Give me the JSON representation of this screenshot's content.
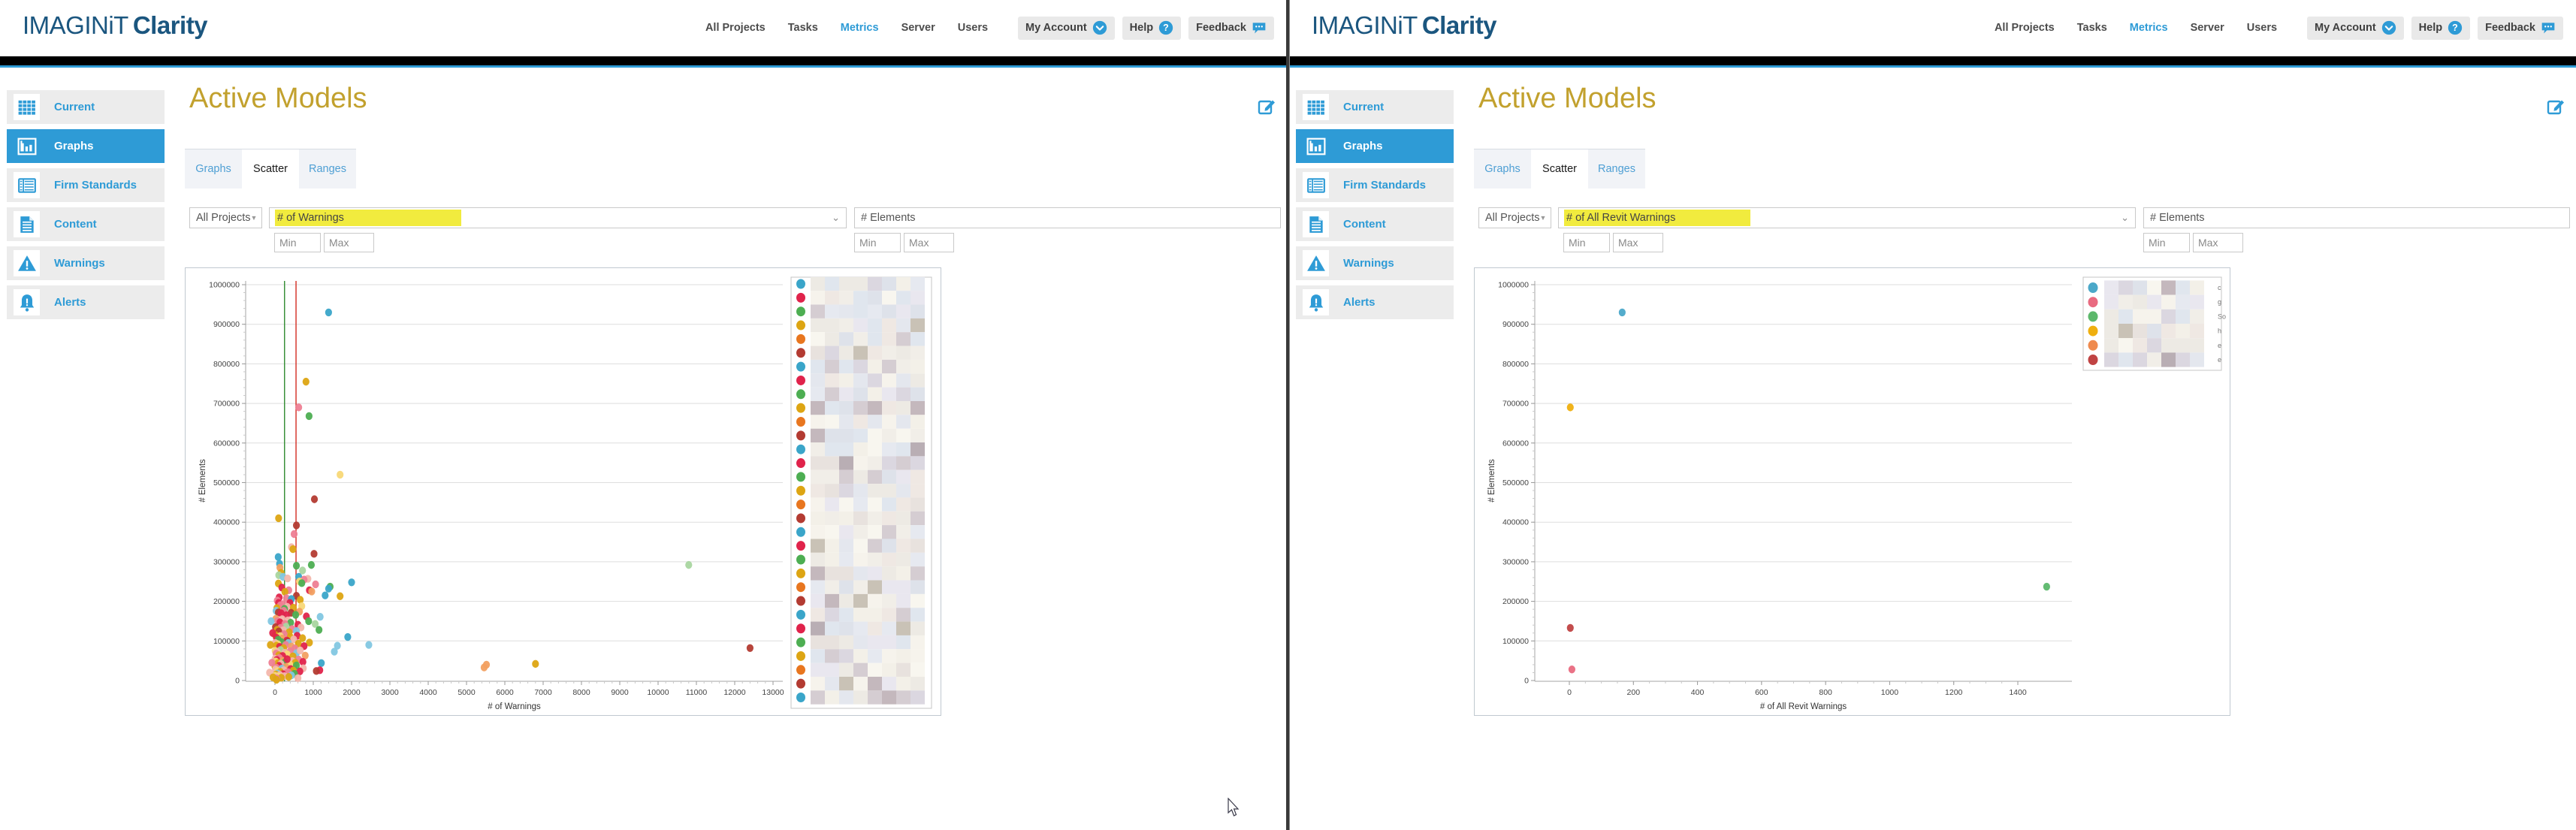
{
  "brand": {
    "regular": "IMAGINiT",
    "bold": "Clarity"
  },
  "nav": {
    "links": [
      "All Projects",
      "Tasks",
      "Metrics",
      "Server",
      "Users"
    ],
    "active": "Metrics",
    "buttons": [
      {
        "label": "My Account",
        "icon": "chevron-down-circle"
      },
      {
        "label": "Help",
        "icon": "question-circle"
      },
      {
        "label": "Feedback",
        "icon": "speech-bubble"
      }
    ]
  },
  "sidebar": [
    {
      "label": "Current",
      "icon": "table"
    },
    {
      "label": "Graphs",
      "icon": "bar-chart",
      "active": true
    },
    {
      "label": "Firm Standards",
      "icon": "standards"
    },
    {
      "label": "Content",
      "icon": "document"
    },
    {
      "label": "Warnings",
      "icon": "warning-triangle"
    },
    {
      "label": "Alerts",
      "icon": "alert-bell"
    }
  ],
  "page": {
    "title": "Active Models",
    "tabs": [
      {
        "label": "Graphs",
        "active": false
      },
      {
        "label": "Scatter",
        "active": true
      },
      {
        "label": "Ranges",
        "active": false
      }
    ]
  },
  "colors": {
    "accent_blue": "#2E9BD6",
    "title_gold": "#C2A12E",
    "highlight_yellow": "#F1EB3E",
    "logo_navy": "#1b567f"
  },
  "panels": [
    {
      "filters": {
        "project": "All Projects",
        "metric_x": "# of Warnings",
        "metric_y": "# Elements",
        "min": "Min",
        "max": "Max"
      },
      "chart_index": 0
    },
    {
      "filters": {
        "project": "All Projects",
        "metric_x": "# of All Revit Warnings",
        "metric_y": "# Elements",
        "min": "Min",
        "max": "Max"
      },
      "chart_index": 1
    }
  ],
  "chart_data": [
    {
      "type": "scatter",
      "title": "",
      "xlabel": "# of Warnings",
      "ylabel": "# Elements",
      "xlim": [
        0,
        13000
      ],
      "ylim": [
        0,
        1000000
      ],
      "xticks": [
        0,
        1000,
        2000,
        3000,
        4000,
        5000,
        6000,
        7000,
        8000,
        9000,
        10000,
        11000,
        12000,
        13000
      ],
      "yticks": [
        0,
        100000,
        200000,
        300000,
        400000,
        500000,
        600000,
        700000,
        800000,
        900000,
        1000000
      ],
      "x_minor_step": 200,
      "y_minor_step": 20000,
      "grid": "horizontal",
      "legend_position": "right",
      "palette": [
        "#3AA5C9",
        "#E0234B",
        "#4DAE52",
        "#DDA513",
        "#E8761F",
        "#B33B32",
        "#EE7F93",
        "#F3B7AC",
        "#82C7E2",
        "#A9D6A0",
        "#F8D877",
        "#F2A061"
      ],
      "reference_lines": [
        {
          "x": 250,
          "color": "#2E8B2E"
        },
        {
          "x": 550,
          "color": "#D42B20"
        }
      ],
      "legend": {
        "redacted": true,
        "entry_colors": [
          0,
          1,
          2,
          3,
          4,
          5,
          0,
          1,
          2,
          3,
          4,
          5,
          0,
          1,
          2,
          3,
          4,
          5,
          0,
          1,
          2,
          3,
          4,
          5,
          0,
          1,
          2,
          3,
          4,
          5,
          0
        ]
      },
      "points": [
        [
          1400,
          930000,
          0
        ],
        [
          810,
          755000,
          3
        ],
        [
          620,
          690000,
          6
        ],
        [
          890,
          668000,
          2
        ],
        [
          1700,
          520000,
          10
        ],
        [
          1030,
          458000,
          5
        ],
        [
          95,
          410000,
          3
        ],
        [
          560,
          392000,
          5
        ],
        [
          500,
          370000,
          6
        ],
        [
          430,
          337000,
          7
        ],
        [
          470,
          332000,
          3
        ],
        [
          1020,
          320000,
          5
        ],
        [
          85,
          312000,
          0
        ],
        [
          120,
          295000,
          0
        ],
        [
          10800,
          292000,
          9
        ],
        [
          950,
          292000,
          2
        ],
        [
          560,
          290000,
          2
        ],
        [
          130,
          285000,
          11
        ],
        [
          720,
          278000,
          9
        ],
        [
          160,
          272000,
          3
        ],
        [
          100,
          266000,
          9
        ],
        [
          620,
          262000,
          0
        ],
        [
          210,
          262000,
          8
        ],
        [
          330,
          258000,
          7
        ],
        [
          860,
          257000,
          7
        ],
        [
          760,
          255000,
          6
        ],
        [
          640,
          250000,
          10
        ],
        [
          2000,
          248000,
          0
        ],
        [
          700,
          246000,
          2
        ],
        [
          90,
          245000,
          3
        ],
        [
          1060,
          243000,
          6
        ],
        [
          1440,
          237000,
          2
        ],
        [
          180,
          235000,
          1
        ],
        [
          1400,
          232000,
          0
        ],
        [
          900,
          228000,
          1
        ],
        [
          360,
          228000,
          6
        ],
        [
          960,
          225000,
          11
        ],
        [
          260,
          224000,
          3
        ],
        [
          1700,
          213000,
          3
        ],
        [
          1310,
          215000,
          0
        ],
        [
          560,
          214000,
          5
        ],
        [
          110,
          210000,
          1
        ],
        [
          300,
          208000,
          6
        ],
        [
          430,
          206000,
          0
        ],
        [
          660,
          204000,
          3
        ],
        [
          60,
          202000,
          6
        ],
        [
          95,
          196000,
          1
        ],
        [
          390,
          196000,
          1
        ],
        [
          210,
          193000,
          6
        ],
        [
          140,
          190000,
          6
        ],
        [
          700,
          188000,
          10
        ],
        [
          320,
          186000,
          7
        ],
        [
          480,
          184000,
          3
        ],
        [
          50,
          183000,
          3
        ],
        [
          250,
          181000,
          2
        ],
        [
          30,
          176000,
          8
        ],
        [
          230,
          176000,
          6
        ],
        [
          640,
          174000,
          11
        ],
        [
          90,
          172000,
          5
        ],
        [
          420,
          171000,
          5
        ],
        [
          160,
          170000,
          1
        ],
        [
          540,
          166000,
          2
        ],
        [
          300,
          165000,
          1
        ],
        [
          820,
          162000,
          1
        ],
        [
          1180,
          161000,
          8
        ],
        [
          25,
          156000,
          11
        ],
        [
          190,
          155000,
          7
        ],
        [
          340,
          152000,
          7
        ],
        [
          70,
          150000,
          6
        ],
        [
          880,
          150000,
          2
        ],
        [
          130,
          147000,
          1
        ],
        [
          410,
          146000,
          2
        ],
        [
          260,
          143000,
          6
        ],
        [
          1050,
          143000,
          9
        ],
        [
          600,
          141000,
          1
        ],
        [
          15,
          135000,
          5
        ],
        [
          290,
          136000,
          9
        ],
        [
          680,
          134000,
          7
        ],
        [
          150,
          133000,
          6
        ],
        [
          450,
          130000,
          6
        ],
        [
          55,
          128000,
          3
        ],
        [
          220,
          127000,
          7
        ],
        [
          1150,
          128000,
          2
        ],
        [
          560,
          125000,
          8
        ],
        [
          100,
          124000,
          5
        ],
        [
          370,
          122000,
          3
        ],
        [
          240,
          117000,
          6
        ],
        [
          10,
          115000,
          3
        ],
        [
          580,
          113000,
          1
        ],
        [
          135,
          112000,
          10
        ],
        [
          400,
          110000,
          3
        ],
        [
          1900,
          110000,
          0
        ],
        [
          40,
          108000,
          1
        ],
        [
          720,
          107000,
          3
        ],
        [
          185,
          106000,
          11
        ],
        [
          490,
          104000,
          7
        ],
        [
          85,
          103000,
          2
        ],
        [
          310,
          101000,
          1
        ],
        [
          330,
          98000,
          5
        ],
        [
          170,
          97000,
          2
        ],
        [
          900,
          96000,
          3
        ],
        [
          8,
          95000,
          7
        ],
        [
          350,
          95000,
          8
        ],
        [
          610,
          93000,
          3
        ],
        [
          75,
          92000,
          10
        ],
        [
          280,
          90000,
          6
        ],
        [
          2450,
          90000,
          8
        ],
        [
          1630,
          88000,
          8
        ],
        [
          35,
          88000,
          3
        ],
        [
          760,
          87000,
          1
        ],
        [
          430,
          86000,
          11
        ],
        [
          120,
          85000,
          1
        ],
        [
          225,
          82000,
          3
        ],
        [
          12400,
          82000,
          5
        ],
        [
          520,
          81000,
          6
        ],
        [
          145,
          77000,
          9
        ],
        [
          5,
          75000,
          10
        ],
        [
          395,
          74000,
          6
        ],
        [
          1550,
          73000,
          8
        ],
        [
          60,
          72000,
          7
        ],
        [
          255,
          70000,
          7
        ],
        [
          560,
          69000,
          8
        ],
        [
          28,
          68000,
          6
        ],
        [
          320,
          66000,
          10
        ],
        [
          100,
          64000,
          3
        ],
        [
          790,
          63000,
          11
        ],
        [
          200,
          62000,
          1
        ],
        [
          470,
          61000,
          3
        ],
        [
          660,
          76000,
          7
        ],
        [
          3,
          55000,
          7
        ],
        [
          115,
          57000,
          6
        ],
        [
          620,
          53000,
          6
        ],
        [
          48,
          52000,
          1
        ],
        [
          205,
          50000,
          11
        ],
        [
          455,
          49000,
          7
        ],
        [
          20,
          48000,
          10
        ],
        [
          730,
          47000,
          1
        ],
        [
          260,
          46000,
          2
        ],
        [
          530,
          45000,
          3
        ],
        [
          1210,
          44000,
          0
        ],
        [
          80,
          44000,
          3
        ],
        [
          6800,
          42000,
          3
        ],
        [
          155,
          42000,
          7
        ],
        [
          385,
          41000,
          10
        ],
        [
          5520,
          40000,
          11
        ],
        [
          320,
          54000,
          1
        ],
        [
          5460,
          33000,
          11
        ],
        [
          560,
          38000,
          2
        ],
        [
          105,
          37000,
          1
        ],
        [
          2,
          35000,
          3
        ],
        [
          285,
          34000,
          11
        ],
        [
          40,
          32000,
          6
        ],
        [
          740,
          31000,
          7
        ],
        [
          180,
          30000,
          8
        ],
        [
          410,
          29000,
          1
        ],
        [
          15,
          28000,
          7
        ],
        [
          230,
          26000,
          7
        ],
        [
          1170,
          26000,
          1
        ],
        [
          480,
          25000,
          3
        ],
        [
          1080,
          24000,
          5
        ],
        [
          70,
          24000,
          10
        ],
        [
          650,
          23000,
          1
        ],
        [
          140,
          22000,
          3
        ],
        [
          345,
          21000,
          6
        ],
        [
          300,
          19000,
          6
        ],
        [
          70,
          18000,
          8
        ],
        [
          510,
          17000,
          2
        ],
        [
          205,
          16000,
          1
        ],
        [
          25,
          15000,
          3
        ],
        [
          130,
          14000,
          7
        ],
        [
          430,
          13000,
          8
        ],
        [
          1,
          12000,
          10
        ],
        [
          250,
          11000,
          7
        ],
        [
          100,
          10000,
          10
        ],
        [
          360,
          9000,
          3
        ],
        [
          10,
          8000,
          7
        ],
        [
          165,
          7000,
          3
        ],
        [
          600,
          6000,
          7
        ],
        [
          45,
          5000,
          6
        ],
        [
          40,
          2000,
          3
        ],
        [
          -120,
          90000,
          3
        ],
        [
          -80,
          45000,
          6
        ],
        [
          -140,
          20000,
          7
        ],
        [
          -60,
          120000,
          1
        ],
        [
          -100,
          150000,
          8
        ],
        [
          -50,
          8000,
          3
        ]
      ]
    },
    {
      "type": "scatter",
      "title": "",
      "xlabel": "# of All Revit Warnings",
      "ylabel": "# Elements",
      "xlim": [
        0,
        1400
      ],
      "ylim": [
        0,
        1000000
      ],
      "xticks": [
        0,
        200,
        400,
        600,
        800,
        1000,
        1200,
        1400
      ],
      "yticks": [
        0,
        100000,
        200000,
        300000,
        400000,
        500000,
        600000,
        700000,
        800000,
        900000,
        1000000
      ],
      "x_minor_step": 50,
      "y_minor_step": 20000,
      "grid": "horizontal",
      "legend_position": "right",
      "palette": [
        "#4BA8C9",
        "#E96A80",
        "#5CB86B",
        "#EFAF0F",
        "#EF8A4E",
        "#C04343"
      ],
      "reference_lines": [],
      "legend": {
        "redacted": true,
        "entry_colors": [
          0,
          1,
          2,
          3,
          4,
          5
        ],
        "label_fragments": [
          "c",
          "g",
          "So",
          "h",
          "e",
          "e"
        ]
      },
      "points": [
        [
          165,
          930000,
          0
        ],
        [
          3,
          690000,
          3
        ],
        [
          1490,
          237000,
          2
        ],
        [
          3,
          133000,
          5
        ],
        [
          8,
          28000,
          1
        ]
      ]
    }
  ]
}
